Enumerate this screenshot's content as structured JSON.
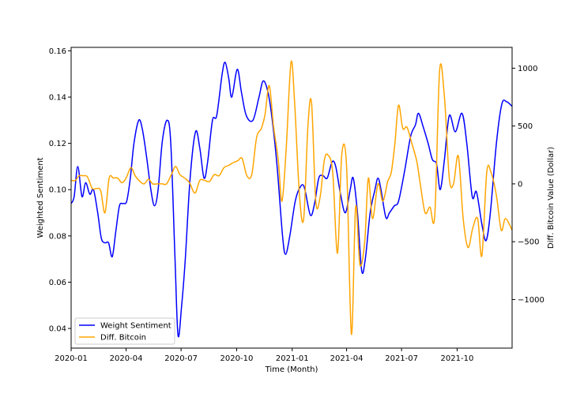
{
  "chart_data": {
    "type": "line",
    "title": "",
    "xlabel": "Time (Month)",
    "ylabel_left": "Weighted Sentiment",
    "ylabel_right": "Diff. Bitcoin Value (Dollar)",
    "x_ticks": [
      "2020-01",
      "2020-04",
      "2020-07",
      "2020-10",
      "2021-01",
      "2021-04",
      "2021-07",
      "2021-10"
    ],
    "y_left_ticks": [
      "0.04",
      "0.06",
      "0.08",
      "0.10",
      "0.12",
      "0.14",
      "0.16"
    ],
    "y_right_ticks": [
      "−1000",
      "−500",
      "0",
      "500",
      "1000"
    ],
    "xlim": [
      "2020-01-01",
      "2021-12-31"
    ],
    "ylim_left": [
      0.0315,
      0.1615
    ],
    "ylim_right": [
      -1420,
      1180
    ],
    "grid": false,
    "legend_position": "lower-left",
    "legend": [
      "Weight Sentiment",
      "Diff. Bitcoin"
    ],
    "series": [
      {
        "name": "Weight Sentiment",
        "axis": "left",
        "color": "#0000ff",
        "points": [
          [
            "2020-01-01",
            0.094
          ],
          [
            "2020-01-06",
            0.097
          ],
          [
            "2020-01-12",
            0.11
          ],
          [
            "2020-01-19",
            0.097
          ],
          [
            "2020-01-25",
            0.103
          ],
          [
            "2020-02-01",
            0.098
          ],
          [
            "2020-02-07",
            0.1
          ],
          [
            "2020-02-14",
            0.09
          ],
          [
            "2020-02-20",
            0.079
          ],
          [
            "2020-02-26",
            0.077
          ],
          [
            "2020-03-03",
            0.077
          ],
          [
            "2020-03-09",
            0.071
          ],
          [
            "2020-03-15",
            0.082
          ],
          [
            "2020-03-21",
            0.093
          ],
          [
            "2020-03-27",
            0.094
          ],
          [
            "2020-04-02",
            0.095
          ],
          [
            "2020-04-08",
            0.105
          ],
          [
            "2020-04-14",
            0.12
          ],
          [
            "2020-04-22",
            0.13
          ],
          [
            "2020-04-28",
            0.126
          ],
          [
            "2020-05-05",
            0.114
          ],
          [
            "2020-05-12",
            0.1
          ],
          [
            "2020-05-18",
            0.093
          ],
          [
            "2020-05-24",
            0.1
          ],
          [
            "2020-05-31",
            0.121
          ],
          [
            "2020-06-08",
            0.13
          ],
          [
            "2020-06-14",
            0.12
          ],
          [
            "2020-06-21",
            0.07
          ],
          [
            "2020-06-26",
            0.037
          ],
          [
            "2020-07-02",
            0.05
          ],
          [
            "2020-07-08",
            0.07
          ],
          [
            "2020-07-16",
            0.105
          ],
          [
            "2020-07-25",
            0.125
          ],
          [
            "2020-08-01",
            0.118
          ],
          [
            "2020-08-08",
            0.105
          ],
          [
            "2020-08-14",
            0.112
          ],
          [
            "2020-08-22",
            0.13
          ],
          [
            "2020-08-29",
            0.132
          ],
          [
            "2020-09-07",
            0.15
          ],
          [
            "2020-09-12",
            0.155
          ],
          [
            "2020-09-18",
            0.148
          ],
          [
            "2020-09-23",
            0.14
          ],
          [
            "2020-10-02",
            0.152
          ],
          [
            "2020-10-09",
            0.142
          ],
          [
            "2020-10-17",
            0.132
          ],
          [
            "2020-10-28",
            0.13
          ],
          [
            "2020-11-07",
            0.14
          ],
          [
            "2020-11-14",
            0.147
          ],
          [
            "2020-11-22",
            0.142
          ],
          [
            "2020-11-29",
            0.13
          ],
          [
            "2020-12-07",
            0.11
          ],
          [
            "2020-12-16",
            0.08
          ],
          [
            "2020-12-21",
            0.072
          ],
          [
            "2020-12-28",
            0.08
          ],
          [
            "2021-01-06",
            0.095
          ],
          [
            "2021-01-14",
            0.101
          ],
          [
            "2021-01-21",
            0.101
          ],
          [
            "2021-01-31",
            0.089
          ],
          [
            "2021-02-07",
            0.094
          ],
          [
            "2021-02-14",
            0.105
          ],
          [
            "2021-02-21",
            0.106
          ],
          [
            "2021-02-28",
            0.105
          ],
          [
            "2021-03-08",
            0.112
          ],
          [
            "2021-03-14",
            0.11
          ],
          [
            "2021-03-22",
            0.098
          ],
          [
            "2021-03-30",
            0.09
          ],
          [
            "2021-04-07",
            0.1
          ],
          [
            "2021-04-12",
            0.105
          ],
          [
            "2021-04-19",
            0.09
          ],
          [
            "2021-04-26",
            0.065
          ],
          [
            "2021-05-02",
            0.07
          ],
          [
            "2021-05-10",
            0.09
          ],
          [
            "2021-05-18",
            0.1
          ],
          [
            "2021-05-23",
            0.105
          ],
          [
            "2021-05-28",
            0.1
          ],
          [
            "2021-06-05",
            0.088
          ],
          [
            "2021-06-11",
            0.09
          ],
          [
            "2021-06-19",
            0.093
          ],
          [
            "2021-06-26",
            0.095
          ],
          [
            "2021-07-06",
            0.108
          ],
          [
            "2021-07-16",
            0.123
          ],
          [
            "2021-07-24",
            0.128
          ],
          [
            "2021-07-29",
            0.133
          ],
          [
            "2021-08-06",
            0.127
          ],
          [
            "2021-08-14",
            0.12
          ],
          [
            "2021-08-21",
            0.113
          ],
          [
            "2021-08-28",
            0.111
          ],
          [
            "2021-09-03",
            0.1
          ],
          [
            "2021-09-10",
            0.113
          ],
          [
            "2021-09-18",
            0.132
          ],
          [
            "2021-09-28",
            0.125
          ],
          [
            "2021-10-09",
            0.133
          ],
          [
            "2021-10-17",
            0.12
          ],
          [
            "2021-10-26",
            0.097
          ],
          [
            "2021-11-02",
            0.099
          ],
          [
            "2021-11-11",
            0.085
          ],
          [
            "2021-11-18",
            0.078
          ],
          [
            "2021-11-25",
            0.09
          ],
          [
            "2021-12-05",
            0.12
          ],
          [
            "2021-12-14",
            0.137
          ],
          [
            "2021-12-22",
            0.138
          ],
          [
            "2021-12-31",
            0.136
          ]
        ]
      },
      {
        "name": "Diff. Bitcoin",
        "axis": "right",
        "color": "#ffa500",
        "points": [
          [
            "2020-01-01",
            30
          ],
          [
            "2020-01-08",
            30
          ],
          [
            "2020-01-14",
            70
          ],
          [
            "2020-01-21",
            70
          ],
          [
            "2020-01-28",
            60
          ],
          [
            "2020-02-05",
            -40
          ],
          [
            "2020-02-12",
            -40
          ],
          [
            "2020-02-19",
            -60
          ],
          [
            "2020-02-26",
            -250
          ],
          [
            "2020-03-04",
            50
          ],
          [
            "2020-03-11",
            50
          ],
          [
            "2020-03-18",
            50
          ],
          [
            "2020-03-25",
            10
          ],
          [
            "2020-04-01",
            50
          ],
          [
            "2020-04-09",
            140
          ],
          [
            "2020-04-16",
            70
          ],
          [
            "2020-04-24",
            20
          ],
          [
            "2020-05-01",
            0
          ],
          [
            "2020-05-08",
            40
          ],
          [
            "2020-05-15",
            0
          ],
          [
            "2020-05-23",
            0
          ],
          [
            "2020-05-31",
            0
          ],
          [
            "2020-06-07",
            0
          ],
          [
            "2020-06-15",
            80
          ],
          [
            "2020-06-22",
            150
          ],
          [
            "2020-06-29",
            80
          ],
          [
            "2020-07-07",
            50
          ],
          [
            "2020-07-15",
            10
          ],
          [
            "2020-07-24",
            -80
          ],
          [
            "2020-08-01",
            30
          ],
          [
            "2020-08-09",
            30
          ],
          [
            "2020-08-17",
            20
          ],
          [
            "2020-08-25",
            80
          ],
          [
            "2020-09-02",
            70
          ],
          [
            "2020-09-10",
            140
          ],
          [
            "2020-09-18",
            160
          ],
          [
            "2020-09-24",
            180
          ],
          [
            "2020-10-03",
            200
          ],
          [
            "2020-10-10",
            220
          ],
          [
            "2020-10-18",
            70
          ],
          [
            "2020-10-26",
            80
          ],
          [
            "2020-11-03",
            400
          ],
          [
            "2020-11-11",
            480
          ],
          [
            "2020-11-17",
            600
          ],
          [
            "2020-11-24",
            850
          ],
          [
            "2020-12-01",
            500
          ],
          [
            "2020-12-09",
            200
          ],
          [
            "2020-12-15",
            -150
          ],
          [
            "2020-12-22",
            300
          ],
          [
            "2020-12-30",
            1050
          ],
          [
            "2021-01-05",
            700
          ],
          [
            "2021-01-13",
            -100
          ],
          [
            "2021-01-20",
            -300
          ],
          [
            "2021-01-27",
            500
          ],
          [
            "2021-02-02",
            700
          ],
          [
            "2021-02-09",
            -150
          ],
          [
            "2021-02-16",
            -120
          ],
          [
            "2021-02-23",
            200
          ],
          [
            "2021-03-01",
            250
          ],
          [
            "2021-03-09",
            100
          ],
          [
            "2021-03-17",
            -600
          ],
          [
            "2021-03-24",
            250
          ],
          [
            "2021-04-01",
            150
          ],
          [
            "2021-04-09",
            -1300
          ],
          [
            "2021-04-16",
            -200
          ],
          [
            "2021-04-23",
            -700
          ],
          [
            "2021-05-01",
            -500
          ],
          [
            "2021-05-07",
            50
          ],
          [
            "2021-05-14",
            -300
          ],
          [
            "2021-05-23",
            0
          ],
          [
            "2021-05-31",
            -150
          ],
          [
            "2021-06-08",
            20
          ],
          [
            "2021-06-14",
            100
          ],
          [
            "2021-06-20",
            350
          ],
          [
            "2021-06-26",
            680
          ],
          [
            "2021-07-03",
            480
          ],
          [
            "2021-07-10",
            490
          ],
          [
            "2021-07-18",
            350
          ],
          [
            "2021-07-26",
            200
          ],
          [
            "2021-08-01",
            0
          ],
          [
            "2021-08-09",
            -250
          ],
          [
            "2021-08-17",
            -200
          ],
          [
            "2021-08-25",
            -270
          ],
          [
            "2021-09-02",
            980
          ],
          [
            "2021-09-10",
            750
          ],
          [
            "2021-09-18",
            50
          ],
          [
            "2021-09-25",
            0
          ],
          [
            "2021-10-03",
            240
          ],
          [
            "2021-10-11",
            -300
          ],
          [
            "2021-10-19",
            -550
          ],
          [
            "2021-10-27",
            -380
          ],
          [
            "2021-11-04",
            -300
          ],
          [
            "2021-11-11",
            -620
          ],
          [
            "2021-11-19",
            100
          ],
          [
            "2021-11-26",
            100
          ],
          [
            "2021-12-05",
            -100
          ],
          [
            "2021-12-13",
            -400
          ],
          [
            "2021-12-20",
            -300
          ],
          [
            "2021-12-31",
            -400
          ]
        ]
      }
    ]
  }
}
